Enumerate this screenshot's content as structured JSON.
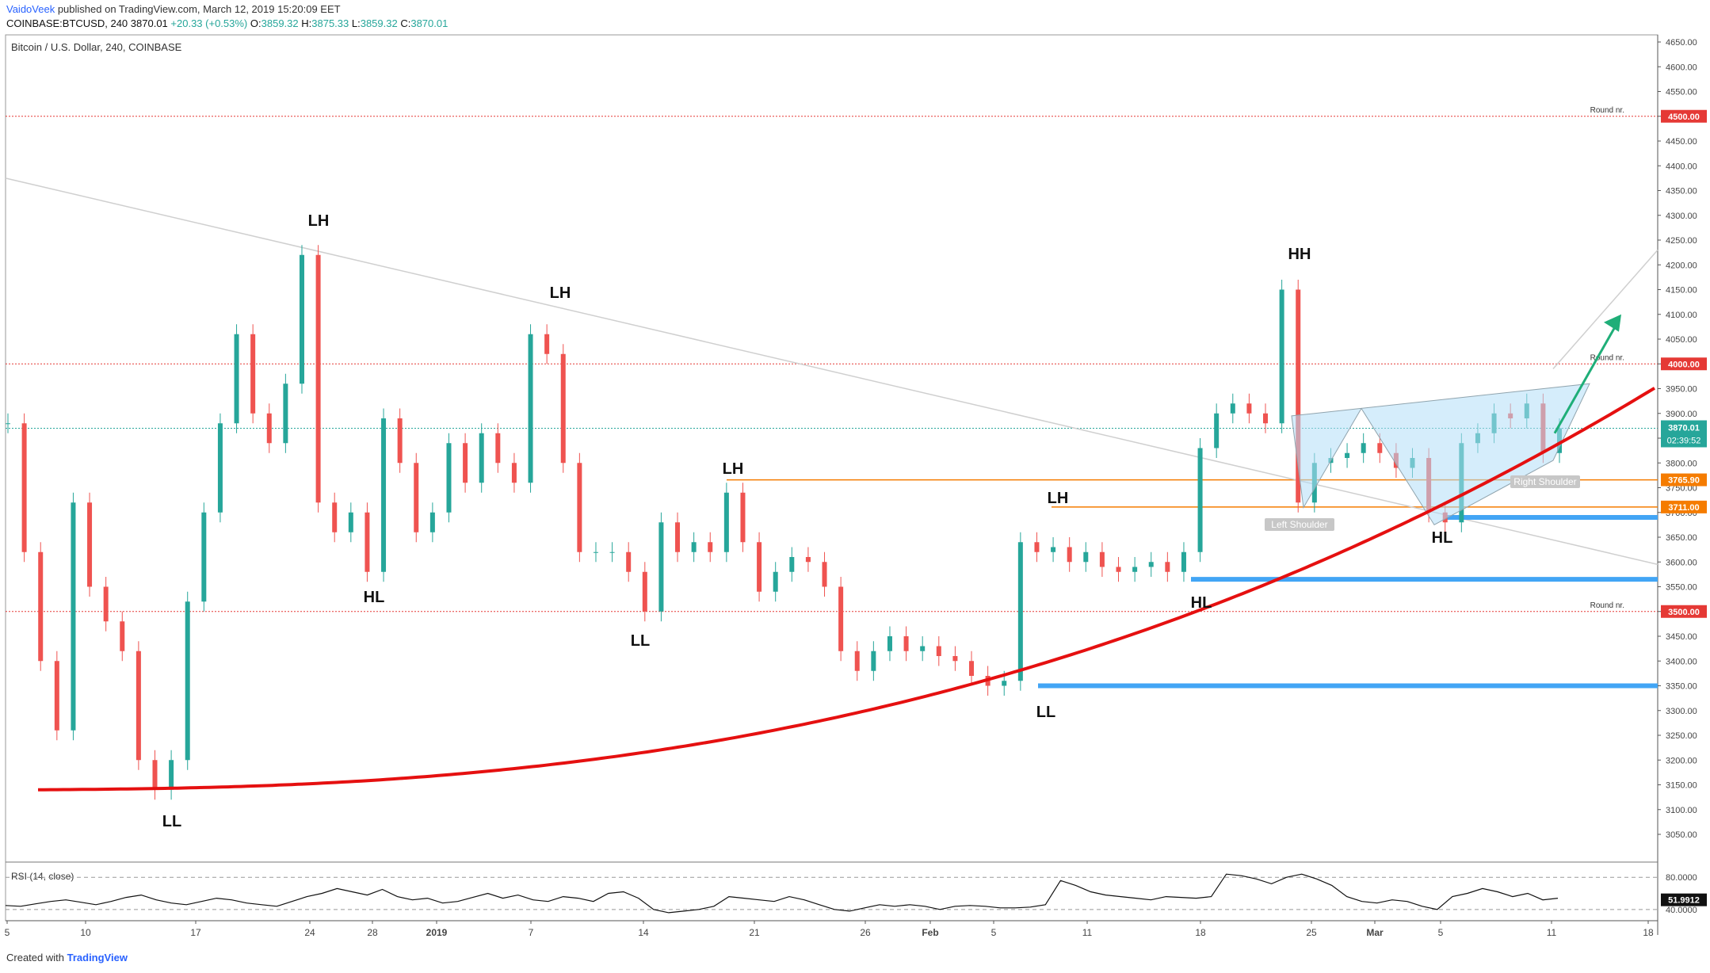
{
  "header": {
    "author": "VaidoVeek",
    "published": "published on TradingView.com, March 12, 2019 15:20:09 EET",
    "symbol": "COINBASE:BTCUSD, 240",
    "price": "3870.01",
    "change": "+20.33 (+0.53%)",
    "o_label": "O:",
    "o_value": "3859.32",
    "h_label": "H:",
    "h_value": "3875.33",
    "l_label": "L:",
    "l_value": "3859.32",
    "c_label": "C:",
    "c_value": "3870.01"
  },
  "footer": {
    "created_with": "Created with",
    "brand": "TradingView"
  },
  "chart_data": {
    "type": "candlestick",
    "title": "Bitcoin / U.S. Dollar, 240, COINBASE",
    "ylim": [
      3020,
      4660
    ],
    "y_ticks": [
      3050,
      3100,
      3150,
      3200,
      3250,
      3300,
      3350,
      3400,
      3450,
      3500,
      3550,
      3600,
      3650,
      3700,
      3750,
      3800,
      3850,
      3900,
      3950,
      4000,
      4050,
      4100,
      4150,
      4200,
      4250,
      4300,
      4350,
      4400,
      4450,
      4500,
      4550,
      4600,
      4650
    ],
    "x_ticks": [
      "5",
      "10",
      "17",
      "24",
      "28",
      "2019",
      "7",
      "14",
      "21",
      "26",
      "Feb",
      "5",
      "11",
      "18",
      "25",
      "Mar",
      "5",
      "11",
      "18"
    ],
    "price_path": [
      [
        "5",
        3880
      ],
      [
        "7",
        3620
      ],
      [
        "8",
        3400
      ],
      [
        "9",
        3260
      ],
      [
        "10",
        3720
      ],
      [
        "11",
        3550
      ],
      [
        "12",
        3480
      ],
      [
        "13",
        3420
      ],
      [
        "14",
        3200
      ],
      [
        "15",
        3140
      ],
      [
        "16",
        3200
      ],
      [
        "17",
        3520
      ],
      [
        "18",
        3700
      ],
      [
        "19",
        3880
      ],
      [
        "20",
        4060
      ],
      [
        "21",
        3900
      ],
      [
        "22",
        3840
      ],
      [
        "23",
        3960
      ],
      [
        "24",
        4220
      ],
      [
        "25",
        3720
      ],
      [
        "26",
        3660
      ],
      [
        "27",
        3700
      ],
      [
        "28",
        3580
      ],
      [
        "29",
        3890
      ],
      [
        "30",
        3800
      ],
      [
        "31",
        3660
      ],
      [
        "2019",
        3700
      ],
      [
        "2",
        3840
      ],
      [
        "3",
        3760
      ],
      [
        "4",
        3860
      ],
      [
        "5",
        3800
      ],
      [
        "6",
        3760
      ],
      [
        "7",
        4060
      ],
      [
        "8",
        4020
      ],
      [
        "9",
        3800
      ],
      [
        "10",
        3620
      ],
      [
        "11",
        3620
      ],
      [
        "12",
        3620
      ],
      [
        "13",
        3580
      ],
      [
        "14",
        3500
      ],
      [
        "15",
        3680
      ],
      [
        "16",
        3620
      ],
      [
        "17",
        3640
      ],
      [
        "18",
        3620
      ],
      [
        "19",
        3740
      ],
      [
        "20",
        3640
      ],
      [
        "21",
        3540
      ],
      [
        "22",
        3580
      ],
      [
        "23",
        3610
      ],
      [
        "24",
        3600
      ],
      [
        "25",
        3550
      ],
      [
        "26",
        3420
      ],
      [
        "27",
        3380
      ],
      [
        "28",
        3420
      ],
      [
        "29",
        3450
      ],
      [
        "30",
        3420
      ],
      [
        "Feb",
        3430
      ],
      [
        "2",
        3410
      ],
      [
        "3",
        3400
      ],
      [
        "4",
        3370
      ],
      [
        "5",
        3350
      ],
      [
        "6",
        3360
      ],
      [
        "7",
        3640
      ],
      [
        "8",
        3620
      ],
      [
        "9",
        3630
      ],
      [
        "10",
        3600
      ],
      [
        "11",
        3620
      ],
      [
        "12",
        3590
      ],
      [
        "13",
        3580
      ],
      [
        "14",
        3590
      ],
      [
        "15",
        3600
      ],
      [
        "16",
        3580
      ],
      [
        "17",
        3620
      ],
      [
        "18",
        3830
      ],
      [
        "19",
        3900
      ],
      [
        "20",
        3920
      ],
      [
        "21",
        3900
      ],
      [
        "22",
        3880
      ],
      [
        "23",
        4150
      ],
      [
        "24",
        3720
      ],
      [
        "25",
        3800
      ],
      [
        "26",
        3810
      ],
      [
        "27",
        3820
      ],
      [
        "28",
        3840
      ],
      [
        "Mar",
        3820
      ],
      [
        "2",
        3790
      ],
      [
        "3",
        3810
      ],
      [
        "4",
        3700
      ],
      [
        "5",
        3680
      ],
      [
        "6",
        3840
      ],
      [
        "7",
        3860
      ],
      [
        "8",
        3900
      ],
      [
        "9",
        3890
      ],
      [
        "10",
        3920
      ],
      [
        "11",
        3820
      ],
      [
        "12",
        3870
      ]
    ],
    "last_price": "3870.01",
    "countdown": "02:39:52",
    "price_labels": [
      {
        "value": 4500,
        "text": "4500.00",
        "color": "#e53935",
        "note": "Round nr."
      },
      {
        "value": 4000,
        "text": "4000.00",
        "color": "#e53935",
        "note": "Round nr."
      },
      {
        "value": 3500,
        "text": "3500.00",
        "color": "#e53935",
        "note": "Round nr."
      },
      {
        "value": 3765.9,
        "text": "3765.90",
        "color": "#f57c00",
        "note": ""
      },
      {
        "value": 3711,
        "text": "3711.00",
        "color": "#f57c00",
        "note": ""
      }
    ],
    "pattern_labels": [
      {
        "text": "LH",
        "x": "24",
        "y": 4280
      },
      {
        "text": "LH",
        "x": "7",
        "y": 4140
      },
      {
        "text": "HL",
        "x": "28",
        "y": 3550
      },
      {
        "text": "LL",
        "x": "14",
        "y": 3450
      },
      {
        "text": "LH",
        "x": "19",
        "y": 3790
      },
      {
        "text": "LH",
        "x": "9",
        "y": 3735
      },
      {
        "text": "HH",
        "x": "23",
        "y": 4210
      },
      {
        "text": "HL",
        "x": "17",
        "y": 3540
      },
      {
        "text": "LL",
        "x": "7",
        "y": 3310
      },
      {
        "text": "HL",
        "x": "5",
        "y": 3660
      },
      {
        "text": "LL",
        "x": "15",
        "y": 3110
      }
    ],
    "shoulder_labels": [
      "Left Shoulder",
      "Right Shoulder"
    ],
    "supports": [
      3690,
      3565,
      3350
    ],
    "rsi": {
      "label": "RSI (14, close)",
      "value": "51.9912",
      "ticks": [
        "80.0000",
        "40.0000"
      ],
      "values": [
        45,
        44,
        47,
        50,
        52,
        49,
        46,
        50,
        55,
        58,
        52,
        48,
        46,
        50,
        54,
        52,
        48,
        46,
        44,
        50,
        56,
        60,
        66,
        62,
        58,
        65,
        56,
        52,
        54,
        48,
        50,
        55,
        60,
        54,
        58,
        52,
        50,
        56,
        54,
        50,
        60,
        62,
        54,
        40,
        36,
        38,
        40,
        44,
        56,
        54,
        52,
        50,
        56,
        52,
        46,
        40,
        38,
        42,
        46,
        44,
        46,
        44,
        40,
        44,
        45,
        44,
        42,
        42,
        43,
        46,
        76,
        70,
        62,
        58,
        56,
        54,
        52,
        56,
        55,
        54,
        56,
        84,
        82,
        78,
        72,
        80,
        84,
        78,
        70,
        56,
        50,
        48,
        52,
        50,
        44,
        40,
        56,
        60,
        66,
        62,
        56,
        60,
        52,
        54
      ]
    },
    "colors": {
      "up": "#26a69a",
      "down": "#ef5350",
      "trend": "#e51010",
      "support": "#42a5f5",
      "arrow": "#1fae78",
      "pattern": "#b3def7"
    }
  }
}
